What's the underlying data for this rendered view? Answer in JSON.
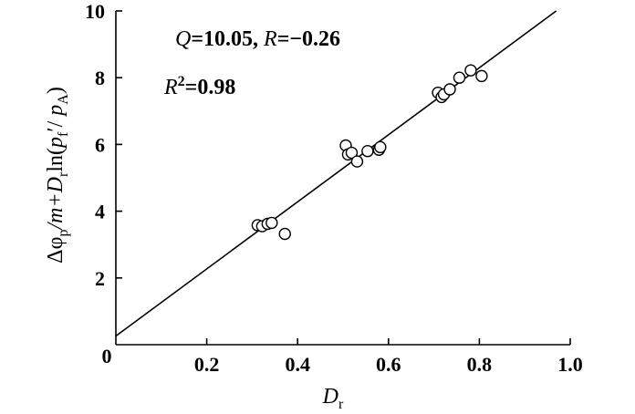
{
  "chart_data": {
    "type": "scatter",
    "title": "",
    "xlabel": "D_r",
    "ylabel": "Δφ_p/m+D_r ln(p'_f/p_A)",
    "xlim": [
      0,
      1.0
    ],
    "ylim": [
      0,
      10
    ],
    "x_ticks": [
      0.2,
      0.4,
      0.6,
      0.8,
      1.0
    ],
    "x_tick_labels": [
      "0.2",
      "0.4",
      "0.6",
      "0.8",
      "1.0"
    ],
    "y_ticks": [
      2,
      4,
      6,
      8,
      10
    ],
    "y_tick_labels": [
      "2",
      "4",
      "6",
      "8",
      "10"
    ],
    "origin_label": "0",
    "grid": false,
    "points": [
      {
        "x": 0.312,
        "y": 3.58
      },
      {
        "x": 0.322,
        "y": 3.55
      },
      {
        "x": 0.334,
        "y": 3.62
      },
      {
        "x": 0.343,
        "y": 3.65
      },
      {
        "x": 0.372,
        "y": 3.32
      },
      {
        "x": 0.506,
        "y": 5.97
      },
      {
        "x": 0.511,
        "y": 5.7
      },
      {
        "x": 0.519,
        "y": 5.75
      },
      {
        "x": 0.531,
        "y": 5.49
      },
      {
        "x": 0.554,
        "y": 5.8
      },
      {
        "x": 0.579,
        "y": 5.84
      },
      {
        "x": 0.582,
        "y": 5.92
      },
      {
        "x": 0.709,
        "y": 7.55
      },
      {
        "x": 0.717,
        "y": 7.42
      },
      {
        "x": 0.722,
        "y": 7.5
      },
      {
        "x": 0.735,
        "y": 7.65
      },
      {
        "x": 0.756,
        "y": 8.0
      },
      {
        "x": 0.781,
        "y": 8.22
      },
      {
        "x": 0.805,
        "y": 8.05
      }
    ],
    "fit_line": {
      "slope": 10.05,
      "intercept": 0.26
    },
    "annotations": {
      "q_label": "Q",
      "q_value": "=10.05",
      "sep": ",",
      "r_label": "R",
      "r_value": "=−0.26",
      "r2_label": "R",
      "r2_sup": "2",
      "r2_value": "=0.98"
    },
    "ylabel_parts": {
      "delta_phi": "Δφ",
      "sub_p": "p",
      "slash_m": "/m+",
      "d": "D",
      "sub_r": "r",
      "ln": "ln(",
      "p": "p",
      "sub_f": "f",
      "slash": "′/ ",
      "p2": "p",
      "sub_A": "A",
      "close": ")"
    },
    "xlabel_parts": {
      "d": "D",
      "sub_r": "r"
    }
  }
}
